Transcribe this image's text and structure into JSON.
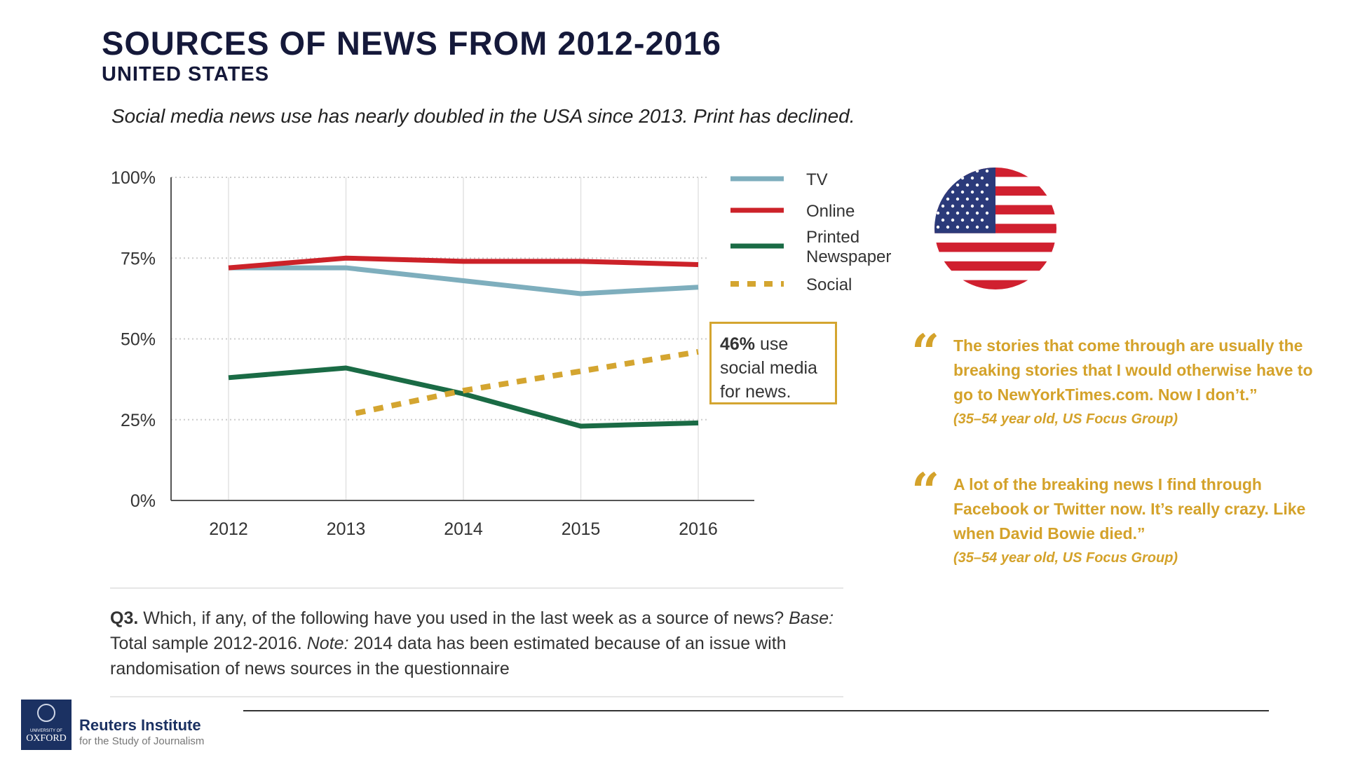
{
  "header": {
    "title": "SOURCES OF NEWS FROM 2012-2016",
    "subtitle": "UNITED STATES",
    "lede": "Social media news use has nearly doubled in the USA since 2013. Print has declined."
  },
  "chart_data": {
    "type": "line",
    "x": [
      "2012",
      "2013",
      "2014",
      "2015",
      "2016"
    ],
    "ylim": [
      0,
      100
    ],
    "yticks": [
      "0%",
      "25%",
      "50%",
      "75%",
      "100%"
    ],
    "grid": true,
    "legend_position": "right",
    "series": [
      {
        "name": "TV",
        "color": "#7eaebd",
        "dashed": false,
        "values": [
          72,
          72,
          68,
          64,
          66
        ]
      },
      {
        "name": "Online",
        "color": "#cc2229",
        "dashed": false,
        "values": [
          72,
          75,
          74,
          74,
          73
        ]
      },
      {
        "name": "Printed Newspaper",
        "color": "#1a6b45",
        "dashed": false,
        "values": [
          38,
          41,
          33,
          23,
          24
        ]
      },
      {
        "name": "Social",
        "color": "#d4a530",
        "dashed": true,
        "values": [
          null,
          27,
          34,
          40,
          46
        ]
      }
    ],
    "legend_lines": [
      "Printed",
      "Newspaper"
    ],
    "callout": {
      "bold": "46%",
      "text": " use social media for news."
    }
  },
  "quotes": [
    {
      "text": "The stories that come through are usually the breaking stories that I would otherwise have to go to NewYorkTimes.com. Now I don’t.”",
      "attribution": "(35–54 year old, US Focus Group)"
    },
    {
      "text": "A lot of the breaking news I find through Facebook or Twitter now. It’s really crazy. Like when David Bowie died.”",
      "attribution": "(35–54 year old, US Focus Group)"
    }
  ],
  "quote_mark": "“",
  "footnote": {
    "q": "Q3.",
    "p1": " Which, if any, of the following have you used in the last week as a source of news? ",
    "base_label": "Base:",
    "p2": " Total sample 2012-2016. ",
    "note_label": "Note:",
    "p3": " 2014 data has been estimated because of an issue with randomisation of news sources in the questionnaire"
  },
  "footer": {
    "logo_small": "UNIVERSITY OF",
    "logo_big": "OXFORD",
    "org": "Reuters Institute",
    "org_sub": "for the Study of Journalism"
  },
  "colors": {
    "navy": "#15193a",
    "gold": "#d4a22a"
  }
}
